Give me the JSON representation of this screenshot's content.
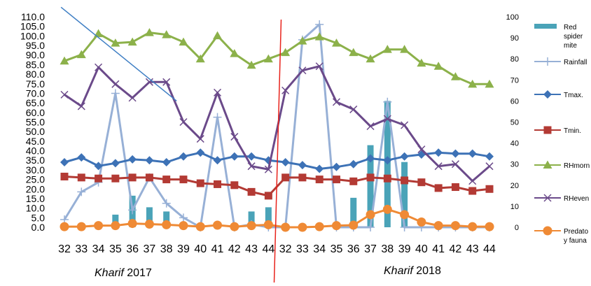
{
  "chart_data": {
    "type": "line",
    "categories": [
      "32",
      "33",
      "34",
      "35",
      "36",
      "37",
      "38",
      "39",
      "40",
      "41",
      "42",
      "43",
      "44",
      "32",
      "33",
      "34",
      "35",
      "36",
      "37",
      "38",
      "39",
      "40",
      "41",
      "42",
      "43",
      "44"
    ],
    "season_labels": [
      {
        "italic": "Kharif",
        "year": " 2017"
      },
      {
        "italic": "Kharif",
        "year": " 2018"
      }
    ],
    "y_left": {
      "min": 0,
      "max": 110,
      "step": 5,
      "tick_labels": [
        "0.0",
        "5.0",
        "10.0",
        "15.0",
        "20.0",
        "25.0",
        "30.0",
        "35.0",
        "40.0",
        "45.0",
        "50.0",
        "55.0",
        "60.0",
        "65.0",
        "70.0",
        "75.0",
        "80.0",
        "85.0",
        "90.0",
        "95.0",
        "100.0",
        "105.0",
        "110.0"
      ]
    },
    "y_right": {
      "min": 0,
      "max": 100,
      "step": 10,
      "tick_labels": [
        "0",
        "10",
        "20",
        "30",
        "40",
        "50",
        "60",
        "70",
        "80",
        "90",
        "100"
      ]
    },
    "grid": false,
    "legend_position": "right",
    "divider_color": "#e8231c",
    "series": [
      {
        "name": "Red spider mite",
        "legend_label": [
          "Red",
          "spider",
          "mite"
        ],
        "kind": "bar",
        "axis": "right",
        "color": "#4aa3b8",
        "values": [
          0,
          0,
          0,
          6,
          15,
          9.5,
          7.5,
          1,
          0,
          0,
          0,
          7.5,
          9.5,
          0,
          0,
          0,
          0,
          14,
          39,
          60,
          31,
          0,
          0,
          0,
          0,
          0
        ]
      },
      {
        "name": "Rainfall",
        "legend_label": [
          "Rainfall"
        ],
        "kind": "line",
        "axis": "left",
        "color": "#97b0d6",
        "marker": "plus",
        "values": [
          4,
          18.5,
          23.5,
          70,
          9,
          26,
          12.5,
          5,
          0,
          57.5,
          0,
          1.5,
          0,
          0,
          98,
          106,
          0,
          0,
          0,
          65.5,
          0,
          0,
          0,
          0,
          0,
          0
        ]
      },
      {
        "name": "Tmax.",
        "legend_label": [
          "Tmax."
        ],
        "kind": "line",
        "axis": "left",
        "color": "#3d72b6",
        "marker": "diamond",
        "values": [
          34,
          36.5,
          32,
          33.5,
          35.5,
          35,
          34,
          37,
          39,
          35,
          37,
          37,
          35,
          34,
          32.5,
          30.5,
          31.5,
          33,
          36,
          35,
          37,
          38,
          39,
          38.5,
          38.5,
          37
        ]
      },
      {
        "name": "Tmin.",
        "legend_label": [
          "Tmin."
        ],
        "kind": "line",
        "axis": "left",
        "color": "#b33a34",
        "marker": "square",
        "values": [
          26.5,
          26,
          25.5,
          25.5,
          26,
          26,
          25,
          25,
          23,
          22.5,
          22,
          18.5,
          16.5,
          26,
          26,
          25,
          25,
          24,
          26,
          25.5,
          24.5,
          23.5,
          20.5,
          21,
          19,
          20
        ]
      },
      {
        "name": "RHmorn",
        "legend_label": [
          "RHmorn"
        ],
        "kind": "line",
        "axis": "right",
        "color": "#8cb14a",
        "marker": "triangle",
        "values": [
          79,
          82,
          92,
          87.5,
          88,
          92.5,
          91.5,
          88,
          80,
          91,
          82.5,
          77,
          80,
          83,
          88.5,
          90.5,
          87.5,
          83,
          80,
          84.5,
          84.5,
          78,
          76.5,
          71.5,
          68,
          68
        ]
      },
      {
        "name": "RHeven",
        "legend_label": [
          "RHeven"
        ],
        "kind": "line",
        "axis": "right",
        "color": "#6b4a8a",
        "marker": "cross",
        "values": [
          63,
          57.5,
          76,
          68,
          61.5,
          69,
          69,
          50,
          42,
          64,
          43,
          29,
          27.5,
          65,
          74.5,
          76.5,
          59.5,
          56,
          48,
          51.5,
          48.5,
          37,
          29,
          30,
          22,
          29
        ]
      },
      {
        "name": "Predatory fauna",
        "legend_label": [
          "Predato",
          "y fauna"
        ],
        "kind": "line",
        "axis": "right",
        "color": "#ef8a35",
        "marker": "circle",
        "values": [
          0.3,
          0.3,
          0.8,
          0.8,
          1.8,
          1.5,
          1.2,
          0.8,
          0.3,
          1,
          0.3,
          0.8,
          1.2,
          0,
          0,
          0.3,
          0.8,
          1,
          6,
          8.5,
          6,
          2.5,
          0.8,
          0.8,
          0.3,
          0.3
        ]
      }
    ],
    "annotation_line": {
      "color": "#3f7fc4",
      "from": {
        "category_index": -0.2,
        "y_left": 115
      },
      "to": {
        "category_index": 6.6,
        "y_left": 66
      }
    }
  }
}
